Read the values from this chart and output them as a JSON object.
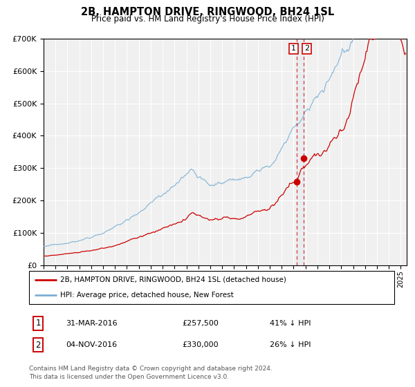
{
  "title": "2B, HAMPTON DRIVE, RINGWOOD, BH24 1SL",
  "subtitle": "Price paid vs. HM Land Registry's House Price Index (HPI)",
  "legend_label_red": "2B, HAMPTON DRIVE, RINGWOOD, BH24 1SL (detached house)",
  "legend_label_blue": "HPI: Average price, detached house, New Forest",
  "transaction1_date": "31-MAR-2016",
  "transaction1_price": 257500,
  "transaction1_pct": "41% ↓ HPI",
  "transaction1_x": 2016.25,
  "transaction2_date": "04-NOV-2016",
  "transaction2_price": 330000,
  "transaction2_pct": "26% ↓ HPI",
  "transaction2_x": 2016.83,
  "footer": "Contains HM Land Registry data © Crown copyright and database right 2024.\nThis data is licensed under the Open Government Licence v3.0.",
  "red_color": "#cc0000",
  "blue_color": "#7bafd4",
  "dashed_color": "#cc0000",
  "bg_color": "#f0f0f0",
  "grid_color": "#ffffff",
  "ylim": [
    0,
    700000
  ],
  "xlim_start": 1995.0,
  "xlim_end": 2025.5
}
